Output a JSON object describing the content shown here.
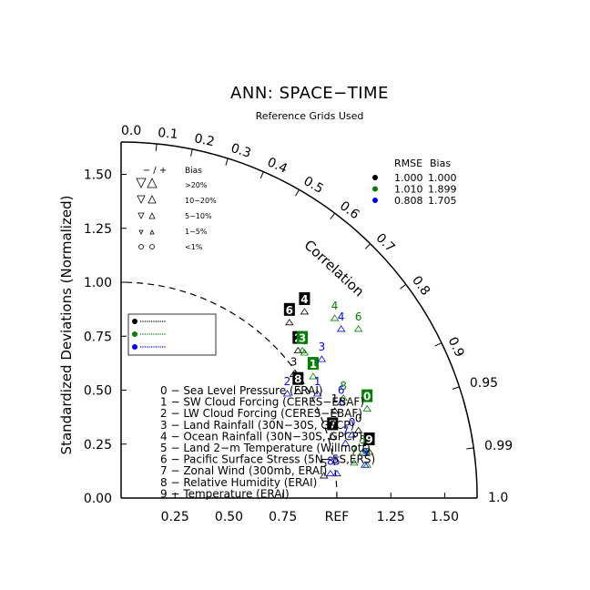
{
  "chart_data": {
    "type": "scatter",
    "subtype": "taylor-diagram",
    "title": "ANN: SPACE−TIME",
    "subtitle": "Reference Grids Used",
    "ylabel": "Standardized Deviations (Normalized)",
    "arc_label": "Correlation",
    "std_range": [
      0,
      1.65
    ],
    "x_ticks": [
      "0.25",
      "0.50",
      "0.75",
      "REF",
      "1.25",
      "1.50"
    ],
    "y_ticks": [
      "0.00",
      "0.25",
      "0.50",
      "0.75",
      "1.00",
      "1.25",
      "1.50"
    ],
    "corr_ticks": [
      {
        "r": 0.0,
        "label": "0.0"
      },
      {
        "r": 0.1,
        "label": "0.1"
      },
      {
        "r": 0.2,
        "label": "0.2"
      },
      {
        "r": 0.3,
        "label": "0.3"
      },
      {
        "r": 0.4,
        "label": "0.4"
      },
      {
        "r": 0.5,
        "label": "0.5"
      },
      {
        "r": 0.6,
        "label": "0.6"
      },
      {
        "r": 0.7,
        "label": "0.7"
      },
      {
        "r": 0.8,
        "label": "0.8"
      },
      {
        "r": 0.9,
        "label": "0.9"
      },
      {
        "r": 0.95,
        "label": "0.95"
      },
      {
        "r": 0.99,
        "label": "0.99"
      },
      {
        "r": 1.0,
        "label": "1.0"
      }
    ],
    "bias_legend": {
      "header_symbols": "− / +",
      "header_label": "Bias",
      "rows": [
        {
          "label": ">20%",
          "size": 10
        },
        {
          "label": "10−20%",
          "size": 8
        },
        {
          "label": "5−10%",
          "size": 6
        },
        {
          "label": "1−5%",
          "size": 4
        },
        {
          "label": "<1%",
          "size": 4,
          "circle": true
        }
      ]
    },
    "stats_table": {
      "headers": [
        "RMSE",
        "Bias"
      ],
      "rows": [
        {
          "color": "#000000",
          "rmse": "1.000",
          "bias": "1.000"
        },
        {
          "color": "#008000",
          "rmse": "1.010",
          "bias": "1.899"
        },
        {
          "color": "#0000ff",
          "rmse": "0.808",
          "bias": "1.705"
        }
      ]
    },
    "case_box_colors": [
      "#000000",
      "#008000",
      "#0000ff"
    ],
    "variables": [
      "0 − Sea Level Pressure (ERAI)",
      "1 − SW Cloud Forcing (CERES−EBAF)",
      "2 − LW Cloud Forcing (CERES−EBAF)",
      "3 − Land Rainfall (30N−30S, GPCP)",
      "4 − Ocean Rainfall (30N−30S, GPCP)",
      "5 − Land 2−m Temperature (Willmott)",
      "6 − Pacific Surface Stress (5N−5S,ERS)",
      "7 − Zonal Wind (300mb, ERAI)",
      "8 − Relative Humidity (ERAI)",
      "9 − Temperature (ERAI)"
    ],
    "series": [
      {
        "color": "#000000",
        "points": [
          {
            "id": "0",
            "x": 1.1,
            "y": 0.37
          },
          {
            "id": "1",
            "x": 0.99,
            "y": 0.46
          },
          {
            "id": "2",
            "x": 0.82,
            "y": 0.74
          },
          {
            "id": "3",
            "x": 0.8,
            "y": 0.63
          },
          {
            "id": "4",
            "x": 0.85,
            "y": 0.92
          },
          {
            "id": "5",
            "x": 0.94,
            "y": 0.16
          },
          {
            "id": "6",
            "x": 0.78,
            "y": 0.87
          },
          {
            "id": "7",
            "x": 0.98,
            "y": 0.34
          },
          {
            "id": "8",
            "x": 0.82,
            "y": 0.55
          },
          {
            "id": "9",
            "x": 1.15,
            "y": 0.27
          }
        ]
      },
      {
        "color": "#008000",
        "points": [
          {
            "id": "0",
            "x": 1.14,
            "y": 0.47
          },
          {
            "id": "1",
            "x": 0.89,
            "y": 0.62
          },
          {
            "id": "2",
            "x": 0.85,
            "y": 0.73
          },
          {
            "id": "3",
            "x": 0.84,
            "y": 0.74
          },
          {
            "id": "4",
            "x": 0.99,
            "y": 0.89
          },
          {
            "id": "5",
            "x": 1.12,
            "y": 0.27
          },
          {
            "id": "6",
            "x": 1.1,
            "y": 0.84
          },
          {
            "id": "7",
            "x": 1.08,
            "y": 0.22
          },
          {
            "id": "8",
            "x": 1.03,
            "y": 0.52
          },
          {
            "id": "9",
            "x": 1.14,
            "y": 0.21
          }
        ]
      },
      {
        "color": "#0000ff",
        "points": [
          {
            "id": "0",
            "x": 1.07,
            "y": 0.35
          },
          {
            "id": "1",
            "x": 0.91,
            "y": 0.54
          },
          {
            "id": "2",
            "x": 0.77,
            "y": 0.54
          },
          {
            "id": "3",
            "x": 0.93,
            "y": 0.7
          },
          {
            "id": "4",
            "x": 1.02,
            "y": 0.84
          },
          {
            "id": "5",
            "x": 1.0,
            "y": 0.17
          },
          {
            "id": "6",
            "x": 1.02,
            "y": 0.5
          },
          {
            "id": "7",
            "x": 1.04,
            "y": 0.31
          },
          {
            "id": "8",
            "x": 0.97,
            "y": 0.17
          },
          {
            "id": "9",
            "x": 1.13,
            "y": 0.21
          }
        ]
      }
    ]
  }
}
